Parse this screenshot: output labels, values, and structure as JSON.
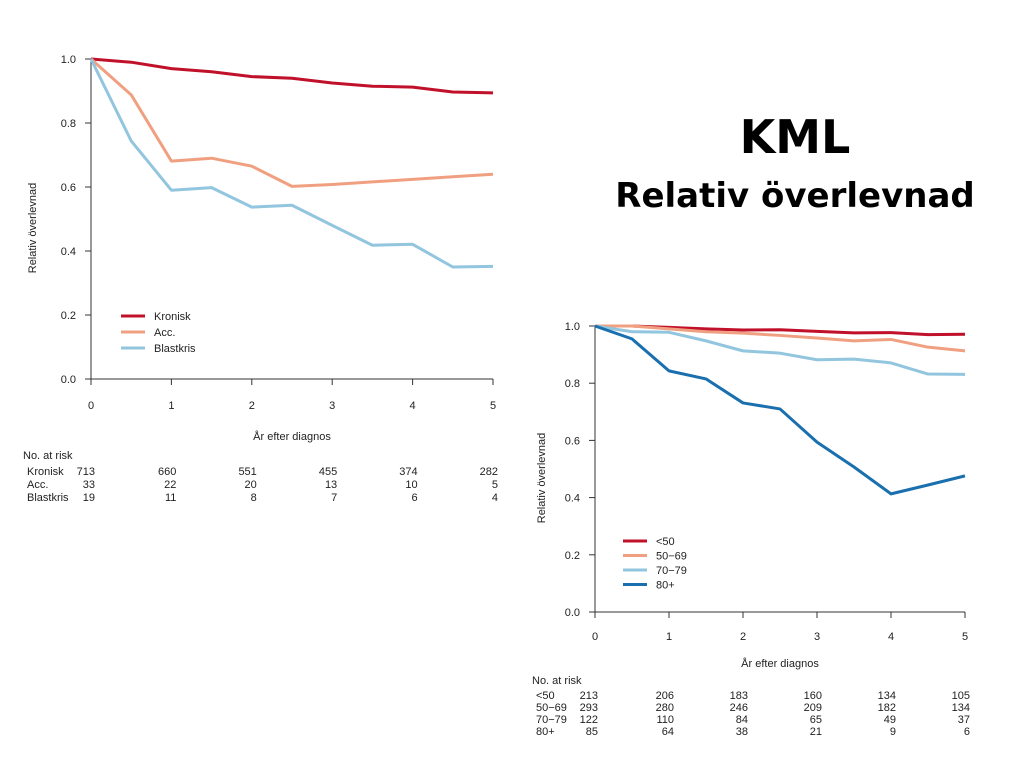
{
  "slide": {
    "title": "KML",
    "subtitle": "Relativ överlevnad"
  },
  "chart_data": [
    {
      "type": "line",
      "title": "",
      "xlabel": "År efter diagnos",
      "ylabel": "Relativ överlevnad",
      "xlim": [
        0,
        5
      ],
      "ylim": [
        0,
        1
      ],
      "xticks": [
        "0",
        "1",
        "2",
        "3",
        "4",
        "5"
      ],
      "yticks": [
        "0.0",
        "0.2",
        "0.4",
        "0.6",
        "0.8",
        "1.0"
      ],
      "grid": false,
      "legend_position": "bottom-left",
      "x": [
        0,
        0.5,
        1,
        1.5,
        2,
        2.5,
        3,
        3.5,
        4,
        4.5,
        5
      ],
      "series": [
        {
          "name": "Kronisk",
          "color": "#c0102a",
          "values": [
            1.0,
            0.99,
            0.97,
            0.96,
            0.945,
            0.94,
            0.925,
            0.915,
            0.912,
            0.897,
            0.894
          ]
        },
        {
          "name": "Acc.",
          "color": "#f0a080",
          "values": [
            1.0,
            0.888,
            0.681,
            0.69,
            0.665,
            0.602,
            0.608,
            0.616,
            0.624,
            0.632,
            0.64
          ]
        },
        {
          "name": "Blastkris",
          "color": "#92c5de",
          "values": [
            1.0,
            0.744,
            0.59,
            0.598,
            0.537,
            0.543,
            0.48,
            0.418,
            0.421,
            0.35,
            0.352
          ]
        }
      ],
      "risk_table": {
        "header": "No. at risk",
        "times": [
          0,
          1,
          2,
          3,
          4,
          5
        ],
        "rows": [
          {
            "label": "Kronisk",
            "values": [
              "713",
              "660",
              "551",
              "455",
              "374",
              "282"
            ]
          },
          {
            "label": "Acc.",
            "values": [
              "33",
              "22",
              "20",
              "13",
              "10",
              "5"
            ]
          },
          {
            "label": "Blastkris",
            "values": [
              "19",
              "11",
              "8",
              "7",
              "6",
              "4"
            ]
          }
        ]
      }
    },
    {
      "type": "line",
      "title": "",
      "xlabel": "År efter diagnos",
      "ylabel": "Relativ överlevnad",
      "xlim": [
        0,
        5
      ],
      "ylim": [
        0,
        1
      ],
      "xticks": [
        "0",
        "1",
        "2",
        "3",
        "4",
        "5"
      ],
      "yticks": [
        "0.0",
        "0.2",
        "0.4",
        "0.6",
        "0.8",
        "1.0"
      ],
      "grid": false,
      "legend_position": "bottom-left",
      "x": [
        0,
        0.5,
        1,
        1.5,
        2,
        2.5,
        3,
        3.5,
        4,
        4.5,
        5
      ],
      "series": [
        {
          "name": "<50",
          "color": "#c0102a",
          "values": [
            1.0,
            1.0,
            0.995,
            0.99,
            0.986,
            0.987,
            0.981,
            0.976,
            0.977,
            0.97,
            0.971
          ]
        },
        {
          "name": "50−69",
          "color": "#f0a080",
          "values": [
            1.0,
            1.0,
            0.99,
            0.98,
            0.975,
            0.967,
            0.958,
            0.948,
            0.953,
            0.926,
            0.913
          ]
        },
        {
          "name": "70−79",
          "color": "#92c5de",
          "values": [
            1.0,
            0.98,
            0.978,
            0.948,
            0.913,
            0.905,
            0.882,
            0.884,
            0.871,
            0.832,
            0.831
          ]
        },
        {
          "name": "80+",
          "color": "#1a6faf",
          "values": [
            1.0,
            0.955,
            0.843,
            0.815,
            0.731,
            0.71,
            0.594,
            0.507,
            0.413,
            0.444,
            0.476
          ]
        }
      ],
      "risk_table": {
        "header": "No. at risk",
        "times": [
          0,
          1,
          2,
          3,
          4,
          5
        ],
        "rows": [
          {
            "label": "<50",
            "values": [
              "213",
              "206",
              "183",
              "160",
              "134",
              "105"
            ]
          },
          {
            "label": "50−69",
            "values": [
              "293",
              "280",
              "246",
              "209",
              "182",
              "134"
            ]
          },
          {
            "label": "70−79",
            "values": [
              "122",
              "110",
              "84",
              "65",
              "49",
              "37"
            ]
          },
          {
            "label": "80+",
            "values": [
              "85",
              "64",
              "38",
              "21",
              "9",
              "6"
            ]
          }
        ]
      }
    }
  ]
}
